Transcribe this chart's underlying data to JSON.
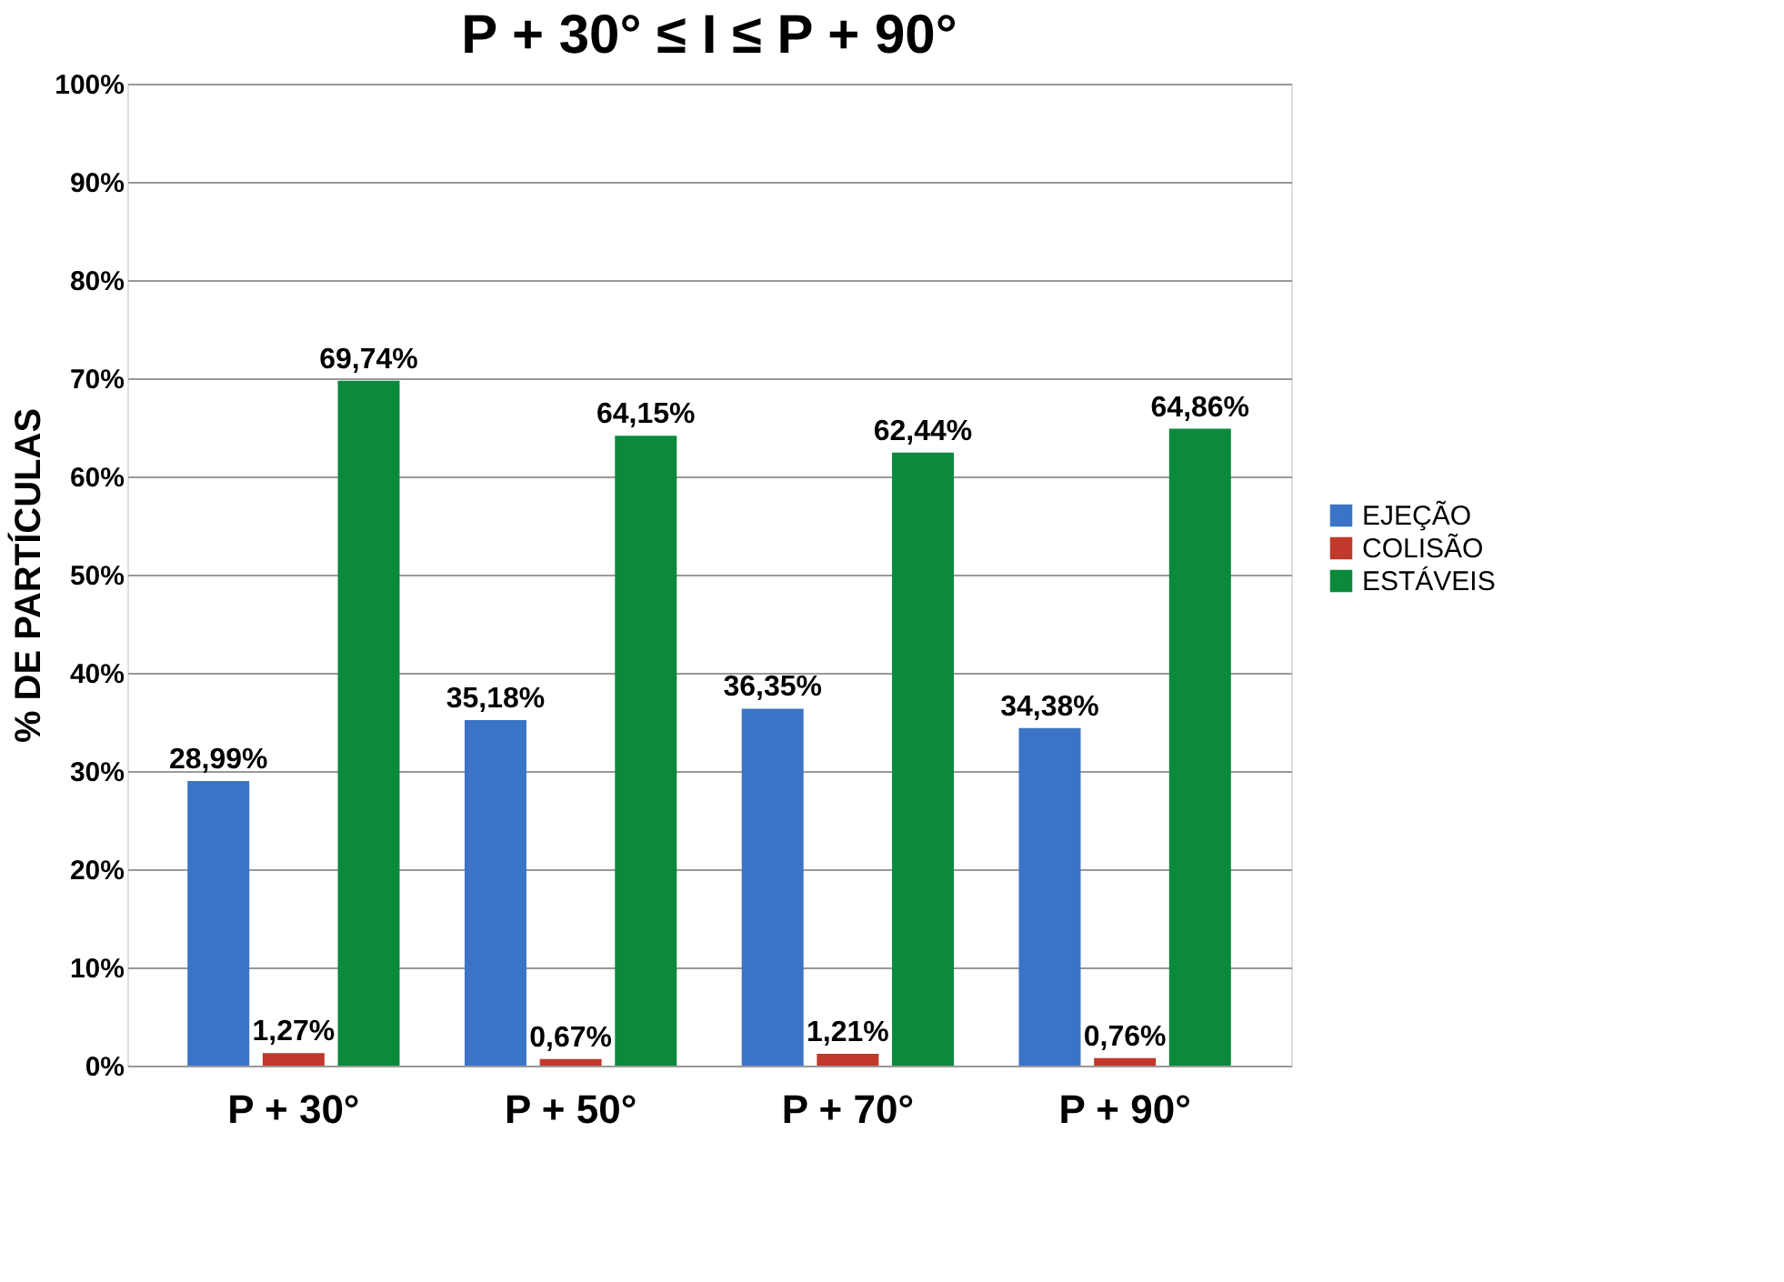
{
  "chart_data": {
    "type": "bar",
    "title": "P + 30° ≤ I ≤ P + 90°",
    "ylabel": "% DE PARTÍCULAS",
    "categories": [
      "P  + 30°",
      "P  + 50°",
      "P  + 70°",
      "P  + 90°"
    ],
    "series": [
      {
        "name": "EJEÇÃO",
        "color": "#3b74c6",
        "values": [
          28.99,
          35.18,
          36.35,
          34.38
        ],
        "value_labels": [
          "28,99%",
          "35,18%",
          "36,35%",
          "34,38%"
        ]
      },
      {
        "name": "COLISÃO",
        "color": "#c0392b",
        "values": [
          1.27,
          0.67,
          1.21,
          0.76
        ],
        "value_labels": [
          "1,27%",
          "0,67%",
          "1,21%",
          "0,76%"
        ]
      },
      {
        "name": "ESTÁVEIS",
        "color": "#0b8a3c",
        "values": [
          69.74,
          64.15,
          62.44,
          64.86
        ],
        "value_labels": [
          "69,74%",
          "64,15%",
          "62,44%",
          "64,86%"
        ]
      }
    ],
    "ylim": [
      0,
      100
    ],
    "yticks": [
      {
        "value": 0,
        "label": "0%"
      },
      {
        "value": 10,
        "label": "10%"
      },
      {
        "value": 20,
        "label": "20%"
      },
      {
        "value": 30,
        "label": "30%"
      },
      {
        "value": 40,
        "label": "40%"
      },
      {
        "value": 50,
        "label": "50%"
      },
      {
        "value": 60,
        "label": "60%"
      },
      {
        "value": 70,
        "label": "70%"
      },
      {
        "value": 80,
        "label": "80%"
      },
      {
        "value": 90,
        "label": "90%"
      },
      {
        "value": 100,
        "label": "100%"
      }
    ],
    "grid": "y",
    "legend": "right"
  }
}
